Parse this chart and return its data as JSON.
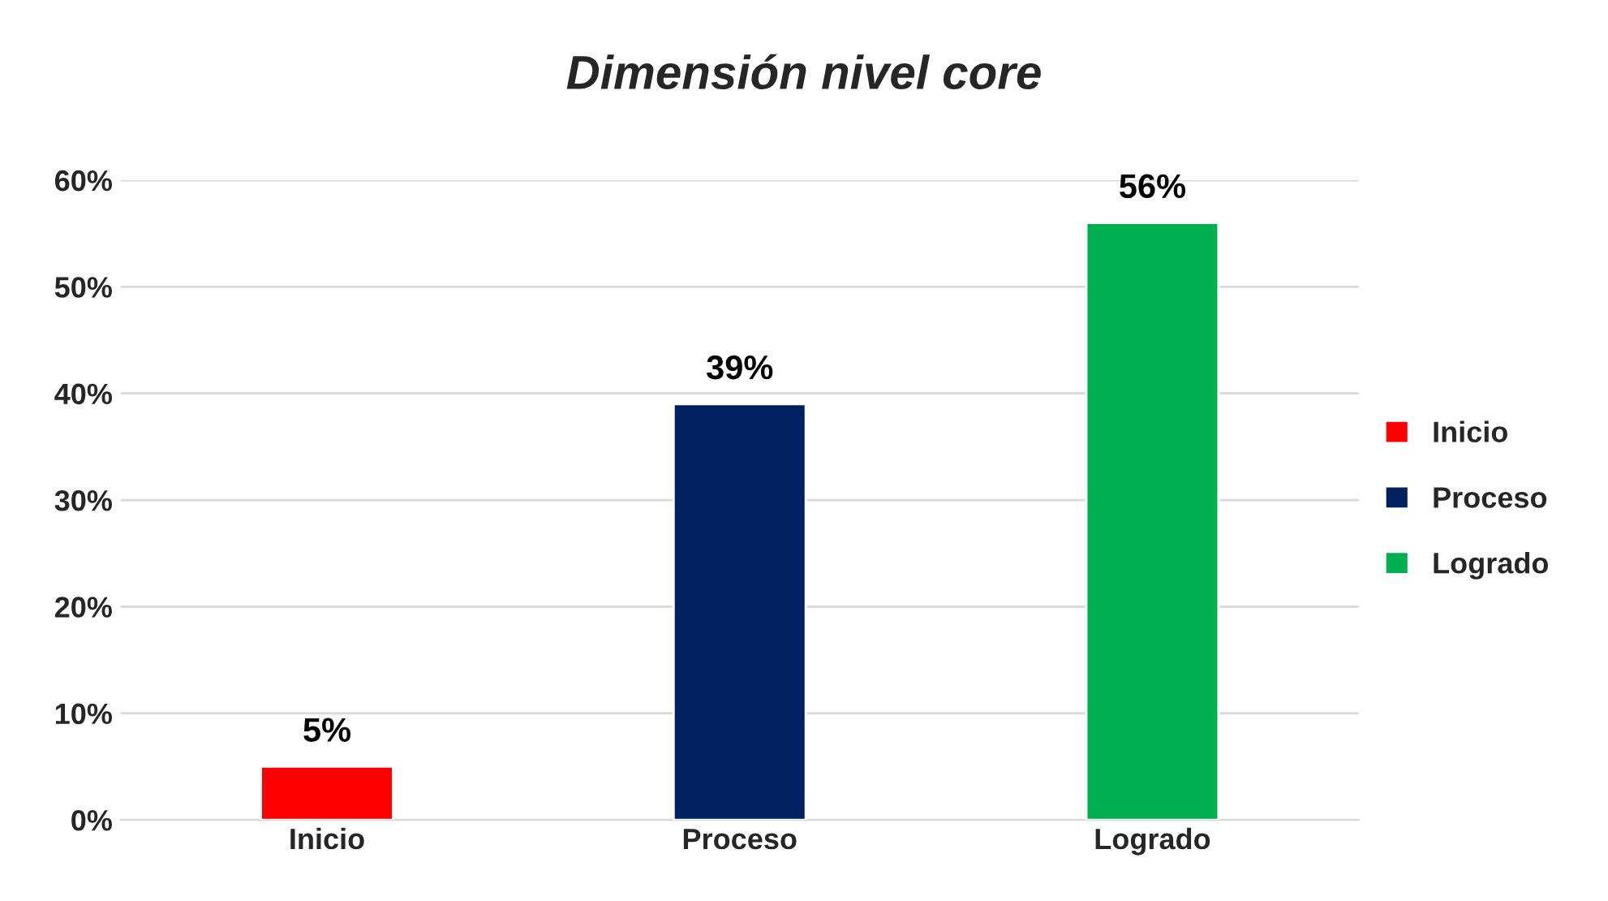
{
  "chart_data": {
    "type": "bar",
    "title": "Dimensión nivel core",
    "categories": [
      "Inicio",
      "Proceso",
      "Logrado"
    ],
    "series": [
      {
        "name": "Inicio",
        "color": "#ff0000",
        "values": [
          5,
          null,
          null
        ]
      },
      {
        "name": "Proceso",
        "color": "#002060",
        "values": [
          null,
          39,
          null
        ]
      },
      {
        "name": "Logrado",
        "color": "#00b050",
        "values": [
          null,
          null,
          56
        ]
      }
    ],
    "ylim": [
      0,
      60
    ],
    "yticks": [
      {
        "value": 0,
        "label": "0%"
      },
      {
        "value": 10,
        "label": "10%"
      },
      {
        "value": 20,
        "label": "20%"
      },
      {
        "value": 30,
        "label": "30%"
      },
      {
        "value": 40,
        "label": "40%"
      },
      {
        "value": 50,
        "label": "50%"
      },
      {
        "value": 60,
        "label": "60%"
      }
    ],
    "value_labels": [
      "5%",
      "39%",
      "56%"
    ],
    "grid": "y",
    "legend": "right"
  }
}
